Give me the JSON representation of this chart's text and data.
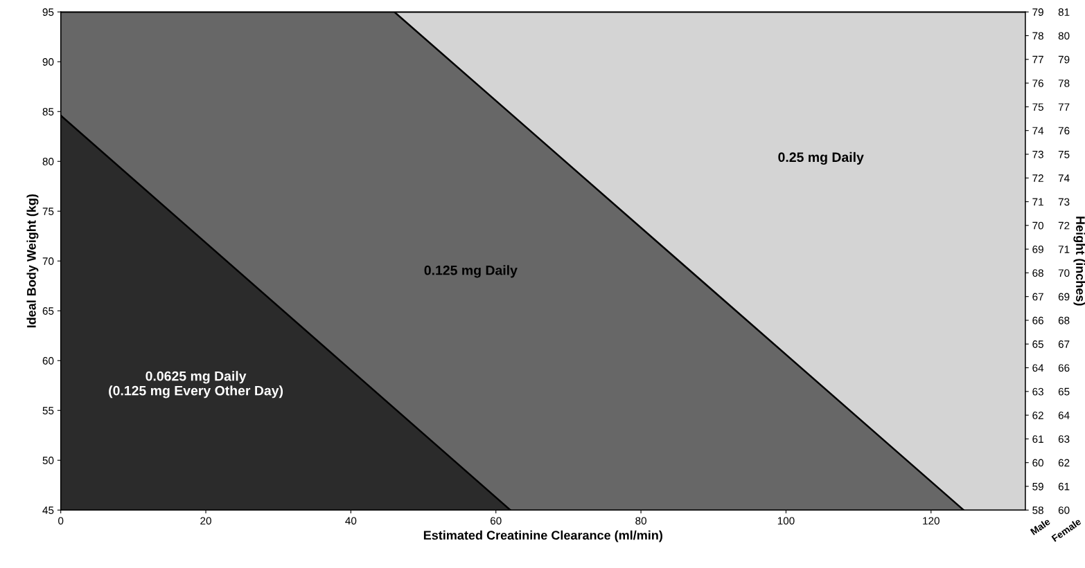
{
  "chart_data": {
    "type": "area",
    "xlabel": "Estimated Creatinine Clearance (ml/min)",
    "ylabel": "Ideal Body Weight (kg)",
    "y2label": "Height (inches)",
    "xlim": [
      0,
      133
    ],
    "xticks": [
      0,
      20,
      40,
      60,
      80,
      100,
      120
    ],
    "ylim": [
      45,
      95
    ],
    "yticks": [
      45,
      50,
      55,
      60,
      65,
      70,
      75,
      80,
      85,
      90,
      95
    ],
    "y2lim": [
      58,
      79
    ],
    "y2ticks": [
      58,
      59,
      60,
      61,
      62,
      63,
      64,
      65,
      66,
      67,
      68,
      69,
      70,
      71,
      72,
      73,
      74,
      75,
      76,
      77,
      78,
      79
    ],
    "y3lim": [
      60,
      81
    ],
    "y3ticks": [
      60,
      61,
      62,
      63,
      64,
      65,
      66,
      67,
      68,
      69,
      70,
      71,
      72,
      73,
      74,
      75,
      76,
      77,
      78,
      79,
      80,
      81
    ],
    "grid": false,
    "legend": false,
    "series": [
      {
        "color": "#d4d4d4",
        "x": [
          46,
          133
        ],
        "values": [
          95,
          95
        ]
      },
      {
        "color": "#676767",
        "x": [
          0,
          46,
          124.5
        ],
        "values": [
          95,
          95,
          45
        ]
      },
      {
        "color": "#2b2b2b",
        "x": [
          0,
          62
        ],
        "values": [
          84.6,
          45
        ]
      }
    ],
    "annotations": [
      "0.25 mg Daily",
      "0.125 mg Daily",
      "0.0625 mg Daily\n(0.125 mg Every Other Day)",
      "Male",
      "Female"
    ]
  }
}
